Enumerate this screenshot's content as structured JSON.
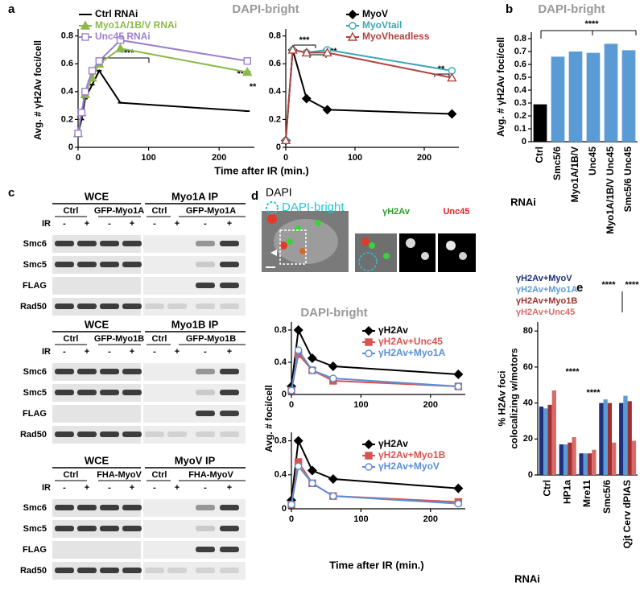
{
  "panel_labels": [
    "a",
    "b",
    "c",
    "d",
    "e"
  ],
  "chart_data": [
    {
      "type": "line",
      "title": "DAPI-bright",
      "ylabel": "Avg. # γH2Av foci/cell",
      "xlabel": "Time after IR (min.)",
      "x": [
        0,
        5,
        10,
        20,
        30,
        60,
        240
      ],
      "xlim": [
        0,
        250
      ],
      "xticks": [
        0,
        100,
        200
      ],
      "ylim": [
        0,
        0.85
      ],
      "yticks": [
        0,
        0.2,
        0.4,
        0.6,
        0.8
      ],
      "series": [
        {
          "name": "Ctrl RNAi",
          "color": "#000000",
          "marker": "dash",
          "filled": true,
          "values": [
            0.1,
            0.2,
            0.35,
            0.45,
            0.55,
            0.32,
            0.26
          ]
        },
        {
          "name": "Myo1A/1B/V RNAi",
          "color": "#8db84a",
          "marker": "triangle",
          "filled": true,
          "values": [
            0.1,
            0.25,
            0.38,
            0.5,
            0.6,
            0.71,
            0.54
          ]
        },
        {
          "name": "Unc45 RNAi",
          "color": "#9b7fd0",
          "marker": "square",
          "filled": false,
          "values": [
            0.1,
            0.25,
            0.4,
            0.55,
            0.62,
            0.77,
            0.62
          ]
        }
      ],
      "annotations": [
        "****",
        "****",
        "**"
      ]
    },
    {
      "type": "line",
      "x": [
        0,
        10,
        30,
        60,
        240
      ],
      "xlim": [
        0,
        250
      ],
      "xticks": [
        0,
        100,
        200
      ],
      "ylim": [
        0,
        0.85
      ],
      "yticks": [
        0,
        0.2,
        0.4,
        0.6,
        0.8
      ],
      "series": [
        {
          "name": "MyoV",
          "color": "#000000",
          "marker": "diamond",
          "filled": true,
          "values": [
            0.05,
            0.7,
            0.35,
            0.27,
            0.24
          ]
        },
        {
          "name": "MyoVtail",
          "color": "#3aa8b4",
          "marker": "circle",
          "filled": false,
          "values": [
            0.05,
            0.7,
            0.68,
            0.7,
            0.55
          ]
        },
        {
          "name": "MyoVheadless",
          "color": "#b0413e",
          "marker": "triangle",
          "filled": false,
          "values": [
            0.05,
            0.7,
            0.68,
            0.68,
            0.5
          ]
        }
      ],
      "annotations": [
        "***",
        "****",
        "**"
      ]
    },
    {
      "type": "bar",
      "title": "DAPI-bright",
      "ylabel": "Avg. # γH2Av foci/cell",
      "xlabel": "RNAi",
      "categories": [
        "Ctrl",
        "Smc5/6",
        "Myo1A/1B/V",
        "Unc45",
        "Myo1A/1B/V Unc45",
        "Smc5/6 Unc45"
      ],
      "values": [
        0.29,
        0.66,
        0.7,
        0.69,
        0.76,
        0.71
      ],
      "colors": [
        "#000000",
        "#5b9bd5",
        "#5b9bd5",
        "#5b9bd5",
        "#5b9bd5",
        "#5b9bd5"
      ],
      "ylim": [
        0,
        0.85
      ],
      "yticks": [
        0,
        0.1,
        0.2,
        0.3,
        0.4,
        0.5,
        0.6,
        0.7,
        0.8
      ],
      "annotations": [
        "****"
      ]
    },
    {
      "type": "line",
      "title": "DAPI-bright",
      "ylabel": "Avg. # foci/cell",
      "x": [
        0,
        10,
        30,
        60,
        240
      ],
      "xlim": [
        0,
        250
      ],
      "xticks": [
        0,
        100,
        200
      ],
      "ylim": [
        0,
        0.9
      ],
      "yticks": [
        0,
        0.4,
        0.8
      ],
      "series": [
        {
          "name": "γH2Av",
          "color": "#000000",
          "marker": "diamond",
          "filled": true,
          "values": [
            0.1,
            0.8,
            0.45,
            0.35,
            0.25
          ]
        },
        {
          "name": "γH2Av+Unc45",
          "color": "#d9534f",
          "marker": "square",
          "filled": true,
          "values": [
            0.05,
            0.5,
            0.3,
            0.17,
            0.1
          ]
        },
        {
          "name": "γH2Av+Myo1A",
          "color": "#5b8fd5",
          "marker": "circle",
          "filled": false,
          "values": [
            0.05,
            0.55,
            0.3,
            0.2,
            0.1
          ]
        }
      ]
    },
    {
      "type": "line",
      "xlabel": "Time after IR (min.)",
      "x": [
        0,
        10,
        30,
        60,
        240
      ],
      "xlim": [
        0,
        250
      ],
      "xticks": [
        0,
        100,
        200
      ],
      "ylim": [
        0,
        0.9
      ],
      "yticks": [
        0,
        0.4,
        0.8
      ],
      "series": [
        {
          "name": "γH2Av",
          "color": "#000000",
          "marker": "diamond",
          "filled": true,
          "values": [
            0.1,
            0.8,
            0.45,
            0.35,
            0.24
          ]
        },
        {
          "name": "γH2Av+Myo1B",
          "color": "#d9534f",
          "marker": "square",
          "filled": true,
          "values": [
            0.05,
            0.55,
            0.3,
            0.15,
            0.08
          ]
        },
        {
          "name": "γH2Av+MyoV",
          "color": "#5b8fd5",
          "marker": "circle",
          "filled": false,
          "values": [
            0.05,
            0.5,
            0.3,
            0.15,
            0.06
          ]
        }
      ]
    },
    {
      "type": "grouped-bar",
      "ylabel": [
        "% H2Av foci",
        "colocalizing w/motors"
      ],
      "xlabel": "RNAi",
      "categories": [
        "Ctrl",
        "HP1a",
        "Mre11",
        "Smc5/6",
        "Qjt Cerv dPIAS"
      ],
      "ylim": [
        0,
        85
      ],
      "yticks": [
        0,
        20,
        40,
        60,
        80
      ],
      "series": [
        {
          "name": "γH2Av+MyoV",
          "color": "#1f2f7a",
          "values": [
            38,
            17,
            12,
            40,
            40
          ]
        },
        {
          "name": "γH2Av+Myo1A",
          "color": "#5b9bd5",
          "values": [
            37,
            17,
            12,
            42,
            44
          ]
        },
        {
          "name": "γH2Av+Myo1B",
          "color": "#a0302f",
          "values": [
            39,
            18,
            12,
            40,
            41
          ]
        },
        {
          "name": "γH2Av+Unc45",
          "color": "#d96a6a",
          "values": [
            47,
            21,
            14,
            18,
            19
          ]
        }
      ],
      "annotations": [
        "****",
        "****",
        "****",
        "****"
      ]
    }
  ],
  "blots": [
    {
      "wce": "WCE",
      "ip": "Myo1A IP",
      "groups": [
        "Ctrl",
        "GFP-Myo1A",
        "Ctrl",
        "GFP-Myo1A"
      ],
      "ir_label": "IR",
      "ir": [
        "-",
        "+",
        "-",
        "+",
        "-",
        "+",
        "-",
        "+"
      ],
      "rows": [
        "Smc6",
        "Smc5",
        "FLAG",
        "Rad50"
      ]
    },
    {
      "wce": "WCE",
      "ip": "Myo1B IP",
      "groups": [
        "Ctrl",
        "GFP-Myo1B",
        "Ctrl",
        "GFP-Myo1B"
      ],
      "ir_label": "IR",
      "ir": [
        "-",
        "+",
        "-",
        "+",
        "-",
        "+",
        "-",
        "+"
      ],
      "rows": [
        "Smc6",
        "Smc5",
        "FLAG",
        "Rad50"
      ]
    },
    {
      "wce": "WCE",
      "ip": "MyoV IP",
      "groups": [
        "Ctrl",
        "FHA-MyoV",
        "Ctrl",
        "FHA-MyoV"
      ],
      "ir_label": "IR",
      "ir": [
        "-",
        "+",
        "-",
        "+",
        "-",
        "+",
        "-",
        "+"
      ],
      "rows": [
        "Smc6",
        "Smc5",
        "FLAG",
        "Rad50"
      ]
    }
  ],
  "micrograph": {
    "dapi": "DAPI",
    "dapi_bright": "DAPI-bright",
    "gh2av": "γH2Av",
    "unc45": "Unc45"
  }
}
